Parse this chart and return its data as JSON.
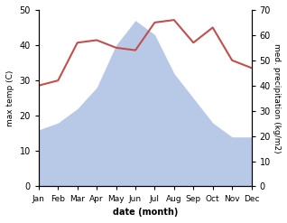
{
  "months": [
    "Jan",
    "Feb",
    "Mar",
    "Apr",
    "May",
    "Jun",
    "Jul",
    "Aug",
    "Sep",
    "Oct",
    "Nov",
    "Dec"
  ],
  "x": [
    1,
    2,
    3,
    4,
    5,
    6,
    7,
    8,
    9,
    10,
    11,
    12
  ],
  "temperature": [
    16,
    18,
    22,
    28,
    40,
    47,
    43,
    32,
    25,
    18,
    14,
    14
  ],
  "precipitation": [
    40,
    42,
    57,
    58,
    55,
    54,
    65,
    66,
    57,
    63,
    50,
    47
  ],
  "temp_color": "#c0504d",
  "precip_fill_color": "#b8c9e8",
  "temp_ylim": [
    0,
    50
  ],
  "precip_ylim": [
    0,
    70
  ],
  "xlabel": "date (month)",
  "ylabel_left": "max temp (C)",
  "ylabel_right": "med. precipitation (kg/m2)",
  "background_color": "#ffffff"
}
